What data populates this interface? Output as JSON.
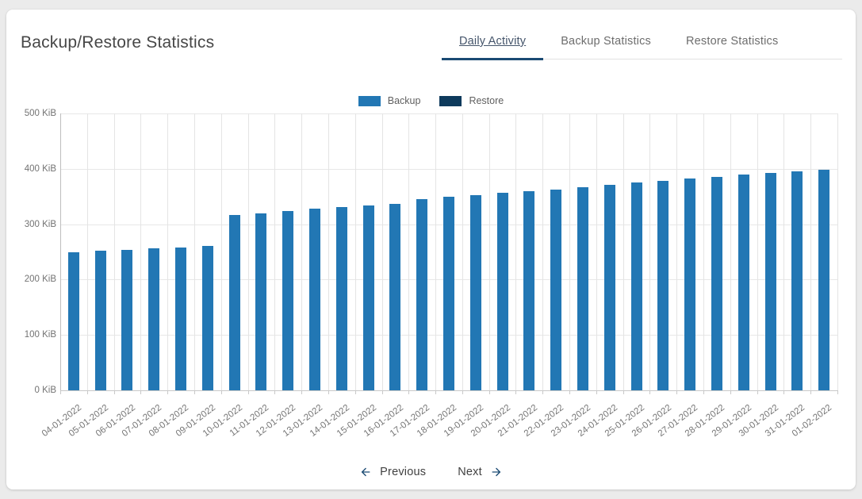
{
  "header": {
    "title": "Backup/Restore Statistics"
  },
  "tabs": [
    {
      "label": "Daily Activity",
      "active": true
    },
    {
      "label": "Backup Statistics",
      "active": false
    },
    {
      "label": "Restore Statistics",
      "active": false
    }
  ],
  "pager": {
    "previous_label": "Previous",
    "next_label": "Next"
  },
  "colors": {
    "accent_navy": "#1a4a73",
    "background": "#ebebeb",
    "card": "#ffffff"
  },
  "chart_data": {
    "type": "bar",
    "title": "",
    "xlabel": "",
    "ylabel": "",
    "yunit": "KiB",
    "ylim": [
      0,
      500
    ],
    "ytick_labels": [
      "0 KiB",
      "100 KiB",
      "200 KiB",
      "300 KiB",
      "400 KiB",
      "500 KiB"
    ],
    "grid": true,
    "legend_position": "top-center",
    "categories": [
      "04-01-2022",
      "05-01-2022",
      "06-01-2022",
      "07-01-2022",
      "08-01-2022",
      "09-01-2022",
      "10-01-2022",
      "11-01-2022",
      "12-01-2022",
      "13-01-2022",
      "14-01-2022",
      "15-01-2022",
      "16-01-2022",
      "17-01-2022",
      "18-01-2022",
      "19-01-2022",
      "20-01-2022",
      "21-01-2022",
      "22-01-2022",
      "23-01-2022",
      "24-01-2022",
      "25-01-2022",
      "26-01-2022",
      "27-01-2022",
      "28-01-2022",
      "29-01-2022",
      "30-01-2022",
      "31-01-2022",
      "01-02-2022"
    ],
    "series": [
      {
        "name": "Backup",
        "color": "#2277b4",
        "values": [
          250,
          252,
          254,
          256,
          258,
          261,
          317,
          320,
          324,
          328,
          331,
          334,
          337,
          345,
          350,
          353,
          357,
          360,
          363,
          367,
          371,
          375,
          378,
          382,
          385,
          389,
          392,
          396,
          399
        ]
      },
      {
        "name": "Restore",
        "color": "#0e3a5c",
        "values": [
          0,
          0,
          0,
          0,
          0,
          0,
          0,
          0,
          0,
          0,
          0,
          0,
          0,
          0,
          0,
          0,
          0,
          0,
          0,
          0,
          0,
          0,
          0,
          0,
          0,
          0,
          0,
          0,
          0
        ]
      }
    ]
  }
}
